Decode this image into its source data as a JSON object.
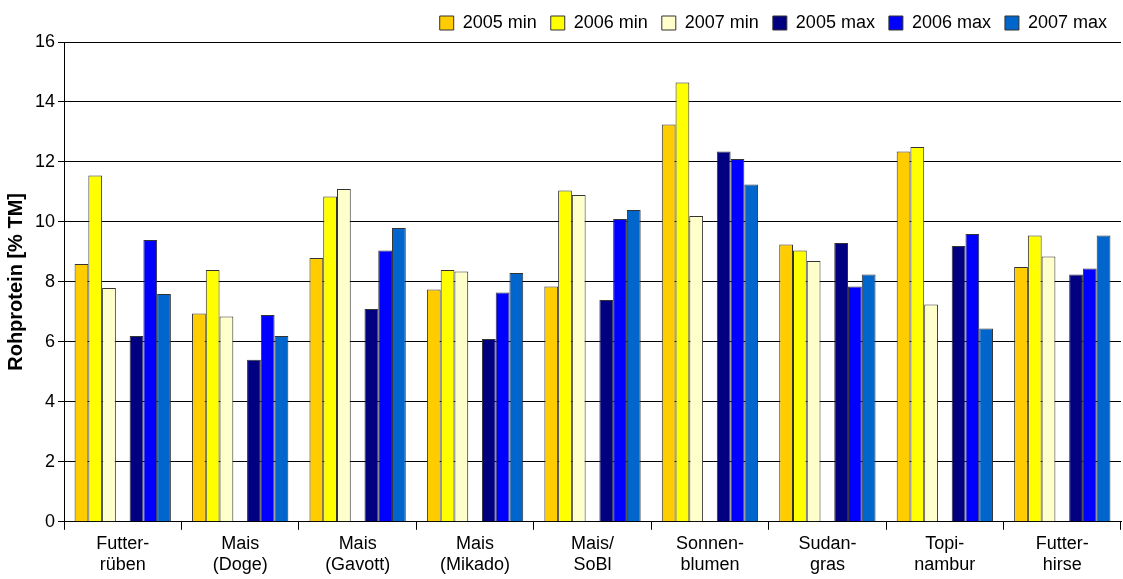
{
  "chart_data": {
    "type": "bar",
    "ylabel": "Rohprotein [% TM]",
    "categories": [
      "Futter-\nrüben",
      "Mais\n(Doge)",
      "Mais\n(Gavott)",
      "Mais\n(Mikado)",
      "Mais/\nSoBl",
      "Sonnen-\nblumen",
      "Sudan-\ngras",
      "Topi-\nnambur",
      "Futter-\nhirse"
    ],
    "series": [
      {
        "name": "2005 min",
        "color": "#ffcc00",
        "values": [
          8.6,
          6.95,
          8.8,
          7.75,
          7.85,
          13.25,
          9.25,
          12.35,
          8.5
        ]
      },
      {
        "name": "2006 min",
        "color": "#ffff00",
        "values": [
          11.55,
          8.4,
          10.85,
          8.4,
          11.05,
          14.65,
          9.05,
          12.5,
          9.55
        ]
      },
      {
        "name": "2007 min",
        "color": "#ffffcc",
        "values": [
          7.8,
          6.85,
          11.1,
          8.35,
          10.9,
          10.2,
          8.7,
          7.25,
          8.85
        ]
      },
      {
        "name": "2005 max",
        "color": "#000080",
        "values": [
          6.2,
          5.4,
          7.1,
          6.1,
          7.4,
          12.35,
          9.3,
          9.2,
          8.25
        ]
      },
      {
        "name": "2006 max",
        "color": "#0000ff",
        "values": [
          9.4,
          6.9,
          9.05,
          7.65,
          10.1,
          12.1,
          7.85,
          9.6,
          8.45
        ]
      },
      {
        "name": "2007 max",
        "color": "#0066cc",
        "values": [
          7.6,
          6.2,
          9.8,
          8.3,
          10.4,
          11.25,
          8.25,
          6.45,
          9.55
        ]
      }
    ],
    "ylim": [
      0,
      16
    ],
    "yticks": [
      0,
      2,
      4,
      6,
      8,
      10,
      12,
      14,
      16
    ],
    "grid": "y",
    "legend": "top right"
  }
}
